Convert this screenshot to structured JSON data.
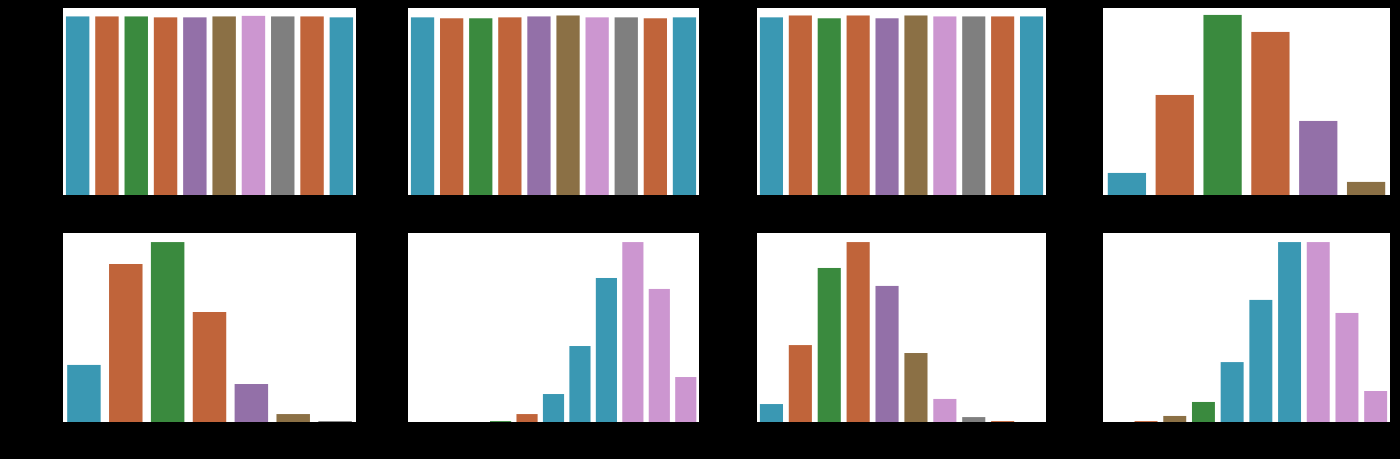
{
  "chart_data": [
    {
      "type": "bar",
      "ylim": [
        0,
        100
      ],
      "values": [
        95.5,
        95.5,
        95.5,
        95,
        95,
        95.5,
        95.8,
        95.5,
        95.5,
        95
      ],
      "colors": [
        "#3a98b3",
        "#c0643a",
        "#3a8a3e",
        "#c0643a",
        "#9370a8",
        "#8b7045",
        "#cc96d0",
        "#7f7f7f",
        "#c0643a",
        "#3a98b3"
      ]
    },
    {
      "type": "bar",
      "ylim": [
        0,
        100
      ],
      "values": [
        95,
        94.5,
        94.5,
        95,
        95.5,
        96,
        95,
        95,
        94.5,
        95
      ],
      "colors": [
        "#3a98b3",
        "#c0643a",
        "#3a8a3e",
        "#c0643a",
        "#9370a8",
        "#8b7045",
        "#cc96d0",
        "#7f7f7f",
        "#c0643a",
        "#3a98b3"
      ]
    },
    {
      "type": "bar",
      "ylim": [
        0,
        100
      ],
      "values": [
        95,
        96,
        94.5,
        96,
        94.5,
        96,
        95.5,
        95.5,
        95.5,
        95.5
      ],
      "colors": [
        "#3a98b3",
        "#c0643a",
        "#3a8a3e",
        "#c0643a",
        "#9370a8",
        "#8b7045",
        "#cc96d0",
        "#7f7f7f",
        "#c0643a",
        "#3a98b3"
      ]
    },
    {
      "type": "bar",
      "ylim": [
        0,
        100
      ],
      "values": [
        11.8,
        53.5,
        96.3,
        87.2,
        39.6,
        7
      ],
      "colors": [
        "#3a98b3",
        "#c0643a",
        "#3a8a3e",
        "#c0643a",
        "#9370a8",
        "#8b7045"
      ]
    },
    {
      "type": "bar",
      "ylim": [
        0,
        100
      ],
      "values": [
        30.2,
        83.6,
        95.2,
        58.2,
        20.1,
        4.2,
        0.5
      ],
      "colors": [
        "#3a98b3",
        "#c0643a",
        "#3a8a3e",
        "#c0643a",
        "#9370a8",
        "#8b7045",
        "#7f7f7f"
      ]
    },
    {
      "type": "bar",
      "ylim": [
        0,
        100
      ],
      "values": [
        0,
        0,
        0,
        0.5,
        4.2,
        14.8,
        40.2,
        76.2,
        95.2,
        70.4,
        23.8
      ],
      "colors": [
        "#3a98b3",
        "#c0643a",
        "#3a8a3e",
        "#3a8a3e",
        "#c0643a",
        "#3a98b3",
        "#3a98b3",
        "#3a98b3",
        "#cc96d0",
        "#cc96d0",
        "#cc96d0"
      ]
    },
    {
      "type": "bar",
      "ylim": [
        0,
        100
      ],
      "values": [
        9.5,
        40.7,
        81.5,
        95.2,
        72,
        36.5,
        12.2,
        2.6,
        0.5,
        0
      ],
      "colors": [
        "#3a98b3",
        "#c0643a",
        "#3a8a3e",
        "#c0643a",
        "#9370a8",
        "#8b7045",
        "#cc96d0",
        "#7f7f7f",
        "#c0643a",
        "#3a98b3"
      ]
    },
    {
      "type": "bar",
      "ylim": [
        0,
        100
      ],
      "values": [
        0,
        0.5,
        3.2,
        10.6,
        31.7,
        64.6,
        95.2,
        95.2,
        57.7,
        16.4
      ],
      "colors": [
        "#3a98b3",
        "#c0643a",
        "#8b7045",
        "#3a8a3e",
        "#3a98b3",
        "#3a98b3",
        "#3a98b3",
        "#cc96d0",
        "#cc96d0",
        "#cc96d0"
      ]
    }
  ]
}
